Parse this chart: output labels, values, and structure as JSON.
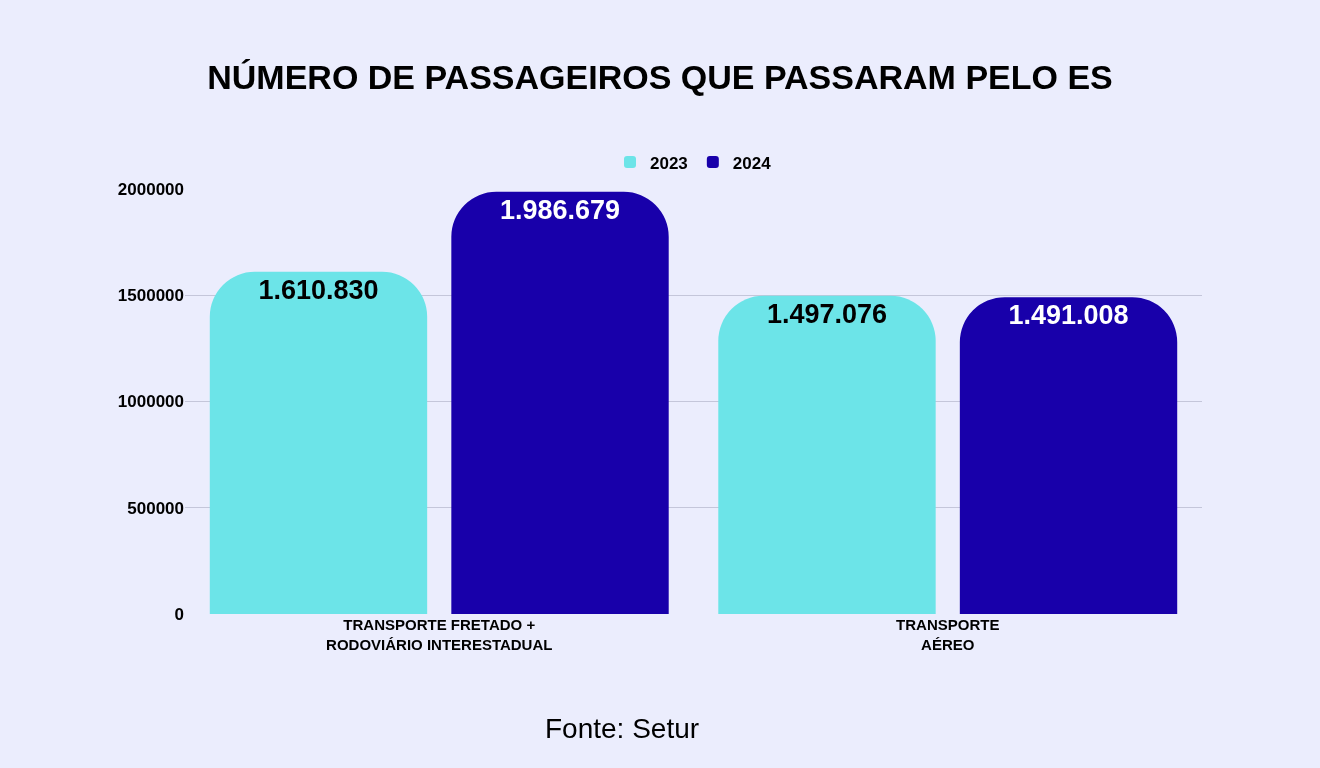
{
  "chart_data": {
    "type": "bar",
    "title": "NÚMERO DE PASSAGEIROS QUE PASSARAM PELO ES",
    "categories": [
      "TRANSPORTE FRETADO +\nRODOVIÁRIO INTERESTADUAL",
      "TRANSPORTE\nAÉREO"
    ],
    "series": [
      {
        "name": "2023",
        "color": "#6ce4e8",
        "values": [
          1610830,
          1497076
        ],
        "value_labels": [
          "1.610.830",
          "1.497.076"
        ]
      },
      {
        "name": "2024",
        "color": "#1800aa",
        "values": [
          1986679,
          1491008
        ],
        "value_labels": [
          "1.986.679",
          "1.491.008"
        ]
      }
    ],
    "ylim": [
      0,
      2000000
    ],
    "yticks": [
      0,
      500000,
      1000000,
      1500000,
      2000000
    ],
    "grid": "y",
    "legend": "top",
    "annotations": [
      "Fonte: Setur"
    ]
  }
}
